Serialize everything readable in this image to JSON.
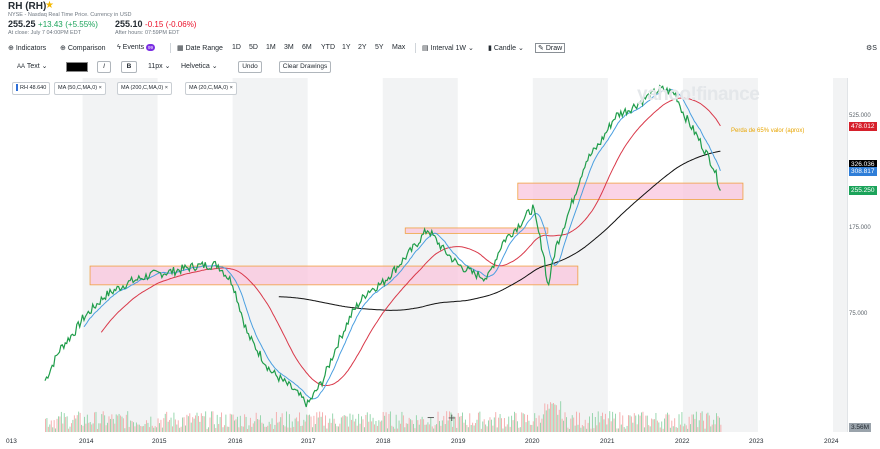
{
  "header": {
    "title": "RH (RH)",
    "exchange_note": "NYSE - Nasdaq Real Time Price. Currency in USD",
    "price": "255.25",
    "change": "+13.43",
    "change_pct": "(+5.55%)",
    "close_time": "At close: July 7 04:00PM EDT",
    "ah_price": "255.10",
    "ah_change": "-0.15",
    "ah_change_pct": "(-0.06%)",
    "ah_time": "After hours: 07:59PM EDT"
  },
  "toolbar": {
    "indicators": "Indicators",
    "comparison": "Comparison",
    "events": "Events",
    "events_badge": "99",
    "date_range": "Date Range",
    "ranges": [
      "1D",
      "5D",
      "1M",
      "3M",
      "6M",
      "YTD",
      "1Y",
      "2Y",
      "5Y",
      "Max"
    ],
    "interval_label": "Interval",
    "interval_value": "1W",
    "candle": "Candle",
    "draw": "Draw",
    "settings": "S"
  },
  "drawbar": {
    "text_tool": "Text",
    "italic": "I",
    "bold": "B",
    "font_size": "11px",
    "font_family": "Helvetica",
    "undo": "Undo",
    "clear": "Clear Drawings"
  },
  "legend": [
    "RH 48.640",
    "MA (50,C,MA,0)",
    "MA (200,C,MA,0)",
    "MA (20,C,MA,0)"
  ],
  "price_axis": [
    "525.000",
    "175.000",
    "75.000"
  ],
  "price_labels": [
    {
      "text": "478.012",
      "color": "#d6202b"
    },
    {
      "text": "326.036",
      "color": "#000000"
    },
    {
      "text": "308.817",
      "color": "#2f7ed8"
    },
    {
      "text": "255.250",
      "color": "#1ba35a"
    },
    {
      "text": "3.56M",
      "color": "#9aa3ab"
    }
  ],
  "x_axis": [
    "013",
    "2014",
    "2015",
    "2016",
    "2017",
    "2018",
    "2019",
    "2020",
    "2021",
    "2022",
    "2023",
    "2024"
  ],
  "watermark": "yahoo!finance",
  "annotation": "Perda de 65% valor (aprox)",
  "zoom_minus": "−",
  "zoom_plus": "+",
  "chart_data": {
    "type": "line",
    "interval": "1W",
    "x": [
      2013.5,
      2013.7,
      2013.9,
      2014.0,
      2014.3,
      2014.6,
      2014.9,
      2015.2,
      2015.5,
      2015.8,
      2016.0,
      2016.2,
      2016.5,
      2016.8,
      2017.0,
      2017.2,
      2017.4,
      2017.6,
      2017.8,
      2018.0,
      2018.2,
      2018.4,
      2018.6,
      2018.8,
      2019.0,
      2019.2,
      2019.4,
      2019.6,
      2019.8,
      2020.0,
      2020.15,
      2020.2,
      2020.3,
      2020.5,
      2020.7,
      2020.9,
      2021.1,
      2021.3,
      2021.5,
      2021.7,
      2021.9,
      2022.0,
      2022.2,
      2022.4,
      2022.5
    ],
    "series": [
      {
        "name": "RH",
        "values": [
          38,
          52,
          62,
          70,
          88,
          100,
          108,
          112,
          118,
          120,
          100,
          60,
          42,
          35,
          30,
          38,
          55,
          75,
          92,
          100,
          118,
          140,
          170,
          140,
          120,
          110,
          105,
          150,
          175,
          210,
          130,
          95,
          140,
          210,
          330,
          400,
          520,
          560,
          620,
          680,
          650,
          540,
          420,
          320,
          255
        ]
      }
    ],
    "ylim": [
      25,
      700
    ],
    "log_scale": true,
    "grid": false
  }
}
